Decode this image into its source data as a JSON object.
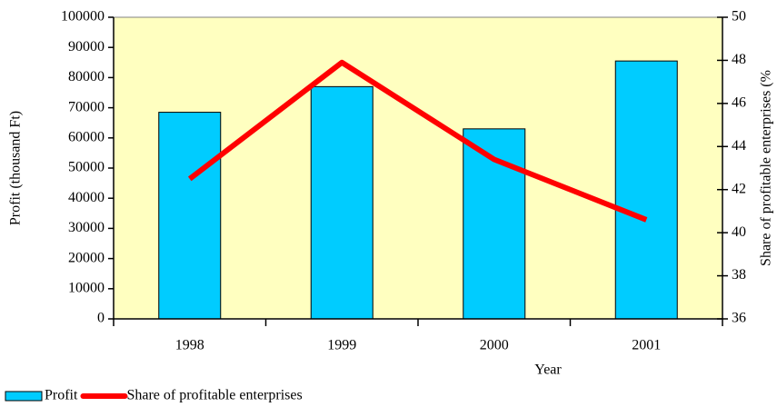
{
  "chart_data": {
    "type": "combo",
    "categories": [
      "1998",
      "1999",
      "2000",
      "2001"
    ],
    "x_label": "Year",
    "y_label": "Profit (thousand Ft)",
    "y2_label": "Share of profitable enterprises (%",
    "ylim": [
      0,
      100000
    ],
    "yticks": [
      0,
      10000,
      20000,
      30000,
      40000,
      50000,
      60000,
      70000,
      80000,
      90000,
      100000
    ],
    "y2lim": [
      36,
      50
    ],
    "y2ticks": [
      36,
      38,
      40,
      42,
      44,
      46,
      48,
      50
    ],
    "plot_background": "#ffffc0",
    "legend": "bottom-left",
    "series": [
      {
        "name": "Profit",
        "type": "bar",
        "color": "#00ccff",
        "values": [
          68500,
          77000,
          63000,
          85500
        ]
      },
      {
        "name": "Share of profitable enterprises",
        "type": "line",
        "axis": "y2",
        "color": "#ff0000",
        "values": [
          42.5,
          47.9,
          43.4,
          40.6
        ]
      }
    ]
  }
}
